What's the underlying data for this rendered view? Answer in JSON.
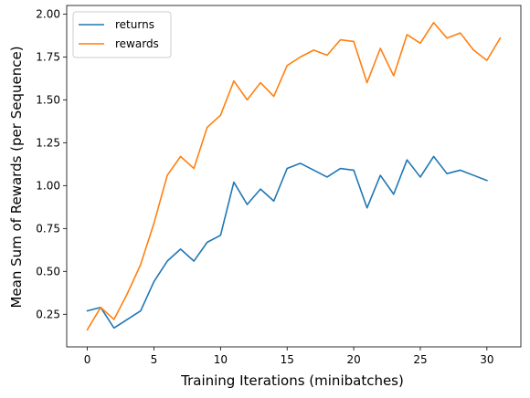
{
  "chart_data": {
    "type": "line",
    "title": "",
    "xlabel": "Training Iterations (minibatches)",
    "ylabel": "Mean Sum of Rewards (per Sequence)",
    "xlim": [
      -1.55,
      32.55
    ],
    "ylim": [
      0.06,
      2.05
    ],
    "xticks": [
      0,
      5,
      10,
      15,
      20,
      25,
      30
    ],
    "yticks": [
      0.25,
      0.5,
      0.75,
      1.0,
      1.25,
      1.5,
      1.75,
      2.0
    ],
    "ytick_labels": [
      "0.25",
      "0.50",
      "0.75",
      "1.00",
      "1.25",
      "1.50",
      "1.75",
      "2.00"
    ],
    "grid": false,
    "legend_position": "top-left",
    "series": [
      {
        "name": "returns",
        "color": "#1f77b4",
        "x": [
          0,
          1,
          2,
          3,
          4,
          5,
          6,
          7,
          8,
          9,
          10,
          11,
          12,
          13,
          14,
          15,
          16,
          17,
          18,
          19,
          20,
          21,
          22,
          23,
          24,
          25,
          26,
          27,
          28,
          29,
          30
        ],
        "values": [
          0.27,
          0.29,
          0.17,
          0.22,
          0.27,
          0.44,
          0.56,
          0.63,
          0.56,
          0.67,
          0.71,
          1.02,
          0.89,
          0.98,
          0.91,
          1.1,
          1.13,
          1.09,
          1.05,
          1.1,
          1.09,
          0.87,
          1.06,
          0.95,
          1.15,
          1.05,
          1.17,
          1.07,
          1.09,
          1.06,
          1.03
        ]
      },
      {
        "name": "rewards",
        "color": "#ff7f0e",
        "x": [
          0,
          1,
          2,
          3,
          4,
          5,
          6,
          7,
          8,
          9,
          10,
          11,
          12,
          13,
          14,
          15,
          16,
          17,
          18,
          19,
          20,
          21,
          22,
          23,
          24,
          25,
          26,
          27,
          28,
          29,
          30,
          31
        ],
        "values": [
          0.16,
          0.29,
          0.22,
          0.37,
          0.54,
          0.78,
          1.06,
          1.17,
          1.1,
          1.34,
          1.41,
          1.61,
          1.5,
          1.6,
          1.52,
          1.7,
          1.75,
          1.79,
          1.76,
          1.85,
          1.84,
          1.6,
          1.8,
          1.64,
          1.88,
          1.83,
          1.95,
          1.86,
          1.89,
          1.79,
          1.73,
          1.86
        ]
      }
    ]
  }
}
